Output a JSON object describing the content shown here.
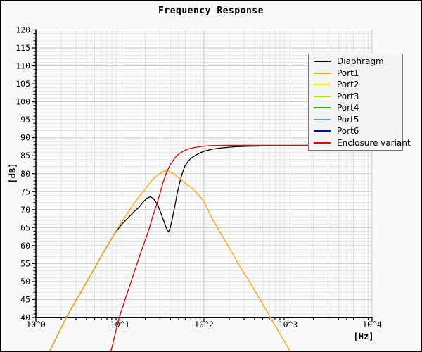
{
  "chart_data": {
    "type": "line",
    "title": "Frequency Response",
    "xlabel": "[Hz]",
    "ylabel": "[dB]",
    "x_scale": "log",
    "x_range_hz": [
      1,
      10000
    ],
    "y_range_db": [
      40,
      120
    ],
    "y_major_step_db": 5,
    "y_minor_step_db": 1,
    "x_tick_labels": [
      "10^0",
      "10^1",
      "10^2",
      "10^3",
      "10^4"
    ],
    "grid": "log minor + major, light gray",
    "legend_position": "upper right",
    "series": [
      {
        "name": "Diaphragm",
        "color": "#000000",
        "visible": true,
        "points": [
          [
            1.45,
            30.5
          ],
          [
            2.3,
            40
          ],
          [
            3.2,
            45.9
          ],
          [
            4.5,
            51.9
          ],
          [
            6.3,
            57.9
          ],
          [
            8.6,
            63.3
          ],
          [
            10.5,
            65.9
          ],
          [
            12.6,
            67.8
          ],
          [
            14.5,
            69.3
          ],
          [
            16.8,
            70.6
          ],
          [
            19,
            72.2
          ],
          [
            21,
            73.2
          ],
          [
            23,
            73.6
          ],
          [
            25,
            73.1
          ],
          [
            28,
            71.5
          ],
          [
            31,
            68.8
          ],
          [
            34,
            66.2
          ],
          [
            36.5,
            64.3
          ],
          [
            37.8,
            63.8
          ],
          [
            39.5,
            64.8
          ],
          [
            42,
            67.5
          ],
          [
            45,
            71
          ],
          [
            48,
            74.5
          ],
          [
            51,
            77.2
          ],
          [
            55,
            80
          ],
          [
            59,
            82
          ],
          [
            64,
            83.3
          ],
          [
            70,
            84.3
          ],
          [
            78,
            85
          ],
          [
            90,
            85.8
          ],
          [
            105,
            86.4
          ],
          [
            125,
            86.8
          ],
          [
            150,
            87.1
          ],
          [
            185,
            87.3
          ],
          [
            230,
            87.5
          ],
          [
            320,
            87.6
          ],
          [
            500,
            87.7
          ],
          [
            1500,
            87.7
          ],
          [
            9800,
            87.7
          ]
        ]
      },
      {
        "name": "Port1",
        "color": "#ffa500",
        "visible": true,
        "points": [
          [
            1.45,
            30.5
          ],
          [
            2.3,
            40
          ],
          [
            3.2,
            45.9
          ],
          [
            4.5,
            51.9
          ],
          [
            6.3,
            57.9
          ],
          [
            8.6,
            63.3
          ],
          [
            10.5,
            66.6
          ],
          [
            12.6,
            69.4
          ],
          [
            15,
            72
          ],
          [
            18,
            74.4
          ],
          [
            21,
            76.4
          ],
          [
            25,
            78.6
          ],
          [
            29,
            79.9
          ],
          [
            33,
            80.6
          ],
          [
            36.5,
            80.8
          ],
          [
            40,
            80.5
          ],
          [
            45,
            79.7
          ],
          [
            53,
            78.4
          ],
          [
            62,
            77
          ],
          [
            72,
            76
          ],
          [
            86,
            74.1
          ],
          [
            100,
            72.3
          ],
          [
            126,
            67.3
          ],
          [
            160,
            63.2
          ],
          [
            200,
            59.3
          ],
          [
            250,
            55.4
          ],
          [
            300,
            52.3
          ],
          [
            350,
            49.9
          ],
          [
            430,
            46.3
          ],
          [
            520,
            43
          ],
          [
            620,
            39.9
          ],
          [
            800,
            35.5
          ],
          [
            1100,
            30
          ]
        ]
      },
      {
        "name": "Port2",
        "color": "#ffee00",
        "visible": false,
        "points": []
      },
      {
        "name": "Port3",
        "color": "#aadd00",
        "visible": false,
        "points": []
      },
      {
        "name": "Port4",
        "color": "#00cc00",
        "visible": false,
        "points": []
      },
      {
        "name": "Port5",
        "color": "#5599ee",
        "visible": false,
        "points": []
      },
      {
        "name": "Port6",
        "color": "#0000cc",
        "visible": false,
        "points": []
      },
      {
        "name": "Enclosure variant",
        "color": "#e00000",
        "visible": true,
        "points": [
          [
            7.8,
            30.5
          ],
          [
            9.8,
            40
          ],
          [
            11.5,
            45
          ],
          [
            13.5,
            49.8
          ],
          [
            15.5,
            54
          ],
          [
            17.4,
            57.5
          ],
          [
            20,
            61.5
          ],
          [
            22.5,
            65
          ],
          [
            24.6,
            68.2
          ],
          [
            27.2,
            71.2
          ],
          [
            30,
            74.5
          ],
          [
            33,
            78
          ],
          [
            36.2,
            80.6
          ],
          [
            40,
            82.6
          ],
          [
            45,
            84.4
          ],
          [
            50,
            85.5
          ],
          [
            57,
            86.3
          ],
          [
            65,
            86.9
          ],
          [
            78,
            87.3
          ],
          [
            95,
            87.6
          ],
          [
            120,
            87.8
          ],
          [
            200,
            87.9
          ],
          [
            600,
            87.9
          ],
          [
            2500,
            87.9
          ],
          [
            9800,
            87.9
          ]
        ]
      }
    ],
    "annotations": {
      "diaphragm_local_max_db_at_hz": [
        73.6,
        23
      ],
      "diaphragm_notch_db_at_hz": [
        63.8,
        38
      ],
      "port1_peak_db_at_hz": [
        80.8,
        36
      ],
      "passband_level_db": 87.8
    }
  },
  "style_colors": {
    "figure_bg": "#f8f8f8",
    "plot_bg": "#fcfcfc",
    "grid_minor": "#e4e4e4",
    "grid_major": "#c9c9c9",
    "axis": "#000000",
    "legend_bg": "#f4f4f4",
    "legend_border": "#777777"
  }
}
